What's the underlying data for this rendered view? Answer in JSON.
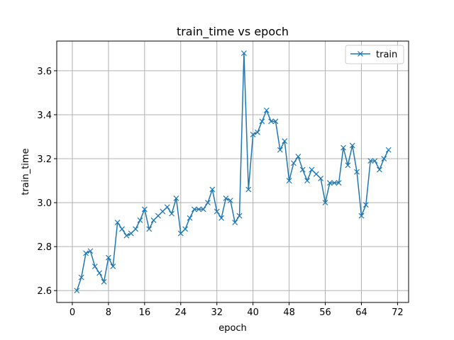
{
  "chart_data": {
    "type": "line",
    "title": "train_time vs epoch",
    "xlabel": "epoch",
    "ylabel": "train_time",
    "xlim": [
      -3.45,
      74.45
    ],
    "ylim": [
      2.546,
      3.735
    ],
    "xticks": [
      0,
      8,
      16,
      24,
      32,
      40,
      48,
      56,
      64,
      72
    ],
    "yticks": [
      2.6,
      2.8,
      3.0,
      3.2,
      3.4,
      3.6
    ],
    "ytick_labels": [
      "2.6",
      "2.8",
      "3.0",
      "3.2",
      "3.4",
      "3.6"
    ],
    "grid": true,
    "legend": {
      "placement": "top-right"
    },
    "colors": {
      "series": "#1f77b4",
      "grid": "#b0b0b0"
    },
    "series": [
      {
        "name": "train",
        "marker": "x",
        "x": [
          1,
          2,
          3,
          4,
          5,
          6,
          7,
          8,
          9,
          10,
          11,
          12,
          13,
          14,
          15,
          16,
          17,
          18,
          19,
          20,
          21,
          22,
          23,
          24,
          25,
          26,
          27,
          28,
          29,
          30,
          31,
          32,
          33,
          34,
          35,
          36,
          37,
          38,
          39,
          40,
          41,
          42,
          43,
          44,
          45,
          46,
          47,
          48,
          49,
          50,
          51,
          52,
          53,
          54,
          55,
          56,
          57,
          58,
          59,
          60,
          61,
          62,
          63,
          64,
          65,
          66,
          67,
          68,
          69,
          70
        ],
        "values": [
          2.6,
          2.66,
          2.77,
          2.78,
          2.71,
          2.68,
          2.64,
          2.75,
          2.71,
          2.91,
          2.88,
          2.85,
          2.86,
          2.88,
          2.92,
          2.97,
          2.88,
          2.92,
          2.94,
          2.96,
          2.98,
          2.95,
          3.02,
          2.86,
          2.88,
          2.93,
          2.97,
          2.97,
          2.97,
          3.0,
          3.06,
          2.96,
          2.93,
          3.02,
          3.01,
          2.91,
          2.94,
          3.68,
          3.06,
          3.31,
          3.32,
          3.37,
          3.42,
          3.37,
          3.37,
          3.24,
          3.28,
          3.1,
          3.18,
          3.21,
          3.15,
          3.1,
          3.15,
          3.13,
          3.11,
          3.0,
          3.09,
          3.09,
          3.09,
          3.25,
          3.17,
          3.26,
          3.14,
          2.94,
          2.99,
          3.19,
          3.19,
          3.15,
          3.2,
          3.24
        ]
      }
    ]
  }
}
